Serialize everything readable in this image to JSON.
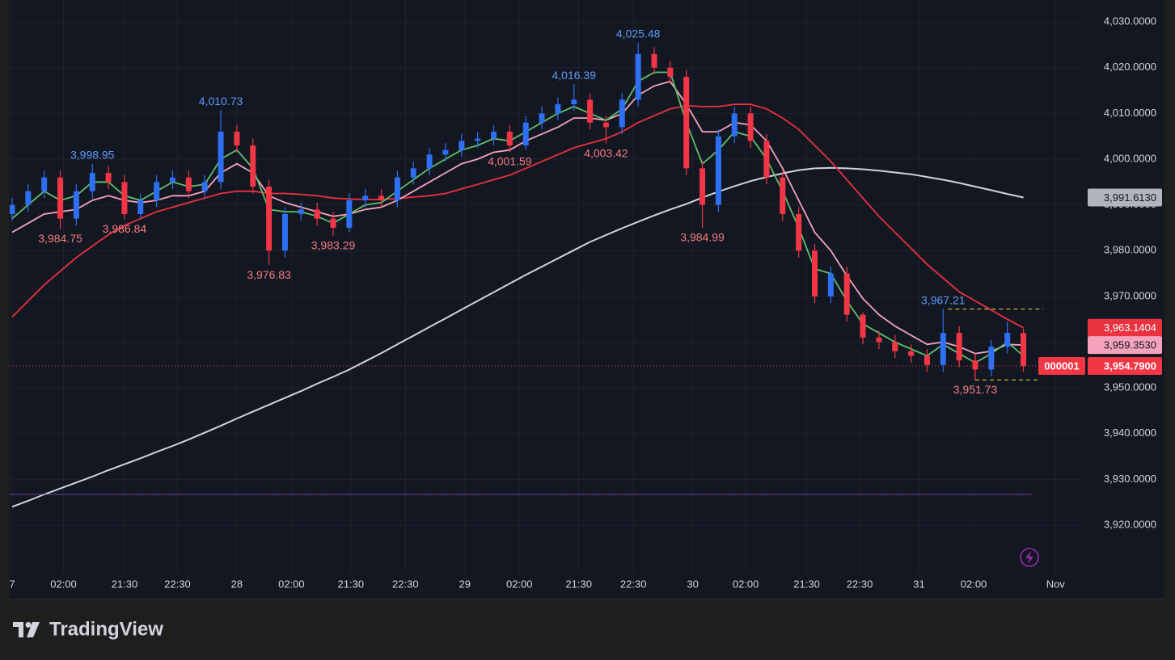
{
  "chart_data": {
    "type": "candlestick",
    "up_color": "#2f6ff2",
    "down_color": "#f23645",
    "grid": true,
    "xlim": [
      -0.15,
      66.75
    ],
    "xticks": [
      {
        "value": 0,
        "label": "7"
      },
      {
        "value": 3.2,
        "label": "02:00"
      },
      {
        "value": 7.0,
        "label": "21:30"
      },
      {
        "value": 10.3,
        "label": "22:30"
      },
      {
        "value": 14.0,
        "label": "28"
      },
      {
        "value": 17.4,
        "label": "02:00"
      },
      {
        "value": 21.1,
        "label": "21:30"
      },
      {
        "value": 24.5,
        "label": "22:30"
      },
      {
        "value": 28.2,
        "label": "29"
      },
      {
        "value": 31.6,
        "label": "02:00"
      },
      {
        "value": 35.3,
        "label": "21:30"
      },
      {
        "value": 38.7,
        "label": "22:30"
      },
      {
        "value": 42.4,
        "label": "30"
      },
      {
        "value": 45.7,
        "label": "02:00"
      },
      {
        "value": 49.5,
        "label": "21:30"
      },
      {
        "value": 52.8,
        "label": "22:30"
      },
      {
        "value": 56.5,
        "label": "31"
      },
      {
        "value": 59.9,
        "label": "02:00"
      },
      {
        "value": 65.0,
        "label": "Nov"
      }
    ],
    "ylim": [
      3904.1,
      4034.8
    ],
    "yticks": [
      {
        "value": 3920,
        "label": "3,920.0000"
      },
      {
        "value": 3930,
        "label": "3,930.0000"
      },
      {
        "value": 3940,
        "label": "3,940.0000"
      },
      {
        "value": 3950,
        "label": "3,950.0000"
      },
      {
        "value": 3960,
        "label": "3,960.0000"
      },
      {
        "value": 3970,
        "label": "3,970.0000"
      },
      {
        "value": 3980,
        "label": "3,980.0000"
      },
      {
        "value": 3990,
        "label": "3,990.0000"
      },
      {
        "value": 4000,
        "label": "4,000.0000"
      },
      {
        "value": 4010,
        "label": "4,010.0000"
      },
      {
        "value": 4020,
        "label": "4,020.0000"
      },
      {
        "value": 4030,
        "label": "4,030.0000"
      }
    ],
    "open": [
      3988,
      3990,
      3993,
      3996,
      3987,
      3993,
      3997,
      3995,
      3988,
      3991,
      3995,
      3996,
      3993,
      3995,
      4006,
      4003,
      3994,
      3980,
      3988,
      3989,
      3987,
      3985,
      3991,
      3992,
      3991,
      3996,
      3998,
      4001,
      4002,
      4004,
      4004.5,
      4006,
      4003,
      4008,
      4010,
      4012,
      4013,
      4008,
      4007,
      4013,
      4023,
      4020,
      4018,
      3998,
      3990,
      4005,
      4010,
      4004,
      3996,
      3988,
      3980,
      3970,
      3975,
      3966,
      3961,
      3960,
      3958,
      3957,
      3955,
      3962,
      3956,
      3954,
      3959,
      3962
    ],
    "high": [
      3991.5,
      3994.5,
      3997.5,
      3997.5,
      3994.5,
      3998.95,
      3998.5,
      3996.5,
      3992.5,
      3996.5,
      3997.5,
      3997.5,
      3996.5,
      4010.73,
      4007.5,
      4004.5,
      3995.5,
      3989.5,
      3990.5,
      3990.5,
      3988.5,
      3992.5,
      3993.5,
      3993.5,
      3997.5,
      3999.5,
      4002.5,
      4003.5,
      4005.5,
      4006,
      4007.5,
      4007.5,
      4009.5,
      4011.5,
      4013.5,
      4016.39,
      4014.5,
      4009.5,
      4014.5,
      4025.48,
      4024.5,
      4021.5,
      4019.5,
      3999.5,
      4006.5,
      4011.5,
      4011.5,
      4005.5,
      3997.5,
      3989.5,
      3981.5,
      3976.5,
      3976.5,
      3966.5,
      3962.5,
      3961.5,
      3959.5,
      3958.5,
      3967.21,
      3963.5,
      3957.5,
      3960.5,
      3964.5,
      3963
    ],
    "low": [
      3986.5,
      3988.5,
      3991.5,
      3984.75,
      3985.5,
      3991.5,
      3993.5,
      3986.84,
      3987,
      3989.5,
      3993.5,
      3991.5,
      3991.5,
      3993.5,
      4001.5,
      3992.5,
      3976.83,
      3978.5,
      3986.5,
      3985.5,
      3983.29,
      3984,
      3989.5,
      3989.5,
      3989.5,
      3994.5,
      3996.5,
      3999.5,
      4000.5,
      4002.5,
      4003,
      4001.59,
      4002,
      4006.5,
      4008.5,
      4010.5,
      4006.5,
      4003.42,
      4005.5,
      4011.5,
      4018.5,
      4016.5,
      3996.5,
      3984.99,
      3988.5,
      4003.5,
      4002.5,
      3994.5,
      3986.5,
      3978.5,
      3968.5,
      3968.5,
      3964.5,
      3959.5,
      3958.5,
      3956.5,
      3955.5,
      3953.5,
      3953.5,
      3954.5,
      3951.73,
      3952.5,
      3957.5,
      3953.5
    ],
    "close": [
      3990,
      3993,
      3996,
      3987,
      3993,
      3997,
      3995,
      3988,
      3991,
      3995,
      3996,
      3993,
      3995,
      4006,
      4003,
      3994,
      3980,
      3988,
      3989,
      3987,
      3985,
      3991,
      3992,
      3991,
      3996,
      3998,
      4001,
      4002,
      4004,
      4004.5,
      4006,
      4003,
      4008,
      4010,
      4012,
      4013,
      4008,
      4007,
      4013,
      4023,
      4020,
      4018,
      3998,
      3990,
      4005,
      4010,
      4004,
      3996,
      3988,
      3980,
      3970,
      3975,
      3966,
      3961,
      3960,
      3958,
      3957,
      3955,
      3962,
      3956,
      3954,
      3959,
      3962,
      3954.79
    ],
    "series": [
      {
        "color": "#d1d4dc",
        "values": [
          3924.0,
          3925.3,
          3926.7,
          3928.0,
          3929.3,
          3930.6,
          3932.0,
          3933.3,
          3934.6,
          3936.0,
          3937.3,
          3938.7,
          3940.2,
          3941.7,
          3943.3,
          3944.8,
          3946.3,
          3947.8,
          3949.3,
          3950.9,
          3952.4,
          3954.0,
          3955.8,
          3957.6,
          3959.5,
          3961.4,
          3963.3,
          3965.2,
          3967.1,
          3969.0,
          3970.9,
          3972.8,
          3974.7,
          3976.5,
          3978.3,
          3980.1,
          3981.9,
          3983.4,
          3984.9,
          3986.3,
          3987.7,
          3989.0,
          3990.2,
          3991.6,
          3992.9,
          3994.1,
          3995.2,
          3996.1,
          3996.9,
          3997.6,
          3998.0,
          3998.1,
          3998.0,
          3997.8,
          3997.5,
          3997.1,
          3996.7,
          3996.1,
          3995.5,
          3994.8,
          3994.0,
          3993.2,
          3992.4,
          3991.613
        ]
      },
      {
        "color": "#e8323f",
        "values": [
          3965.5,
          3969,
          3972.5,
          3975.5,
          3978.5,
          3981,
          3983.5,
          3985.5,
          3987,
          3988.5,
          3989.5,
          3990.5,
          3991.5,
          3992.5,
          3993,
          3993,
          3992.5,
          3992.5,
          3992.3,
          3992,
          3991.5,
          3991.3,
          3991.2,
          3991.2,
          3991.4,
          3991.7,
          3992,
          3992.5,
          3993.5,
          3994.5,
          3995.5,
          3996.5,
          3998,
          3999.5,
          4001,
          4002.5,
          4003.5,
          4004.5,
          4006,
          4008,
          4009.5,
          4011,
          4011.7,
          4011.5,
          4011.5,
          4012,
          4012,
          4011,
          4009,
          4006.5,
          4003,
          3999.5,
          3995.5,
          3991.5,
          3987.5,
          3984,
          3980.5,
          3977,
          3974,
          3971,
          3969,
          3967,
          3965,
          3963.1404
        ]
      },
      {
        "color": "#f5a3bd",
        "values": [
          3984,
          3986,
          3988,
          3988.5,
          3989,
          3991,
          3992,
          3991,
          3990.5,
          3991,
          3992,
          3992,
          3993,
          3997,
          3999,
          3997,
          3992,
          3990.5,
          3989.5,
          3988.5,
          3987.5,
          3988,
          3989,
          3989.5,
          3991,
          3993,
          3995,
          3997,
          3999,
          4000,
          4001.5,
          4002,
          4004,
          4005.5,
          4007,
          4009,
          4009,
          4008.5,
          4010,
          4014,
          4016,
          4017,
          4012,
          4006,
          4006,
          4008,
          4007.5,
          4004,
          3998,
          3991,
          3984,
          3980,
          3974.5,
          3969.5,
          3966,
          3963.5,
          3961.5,
          3959.5,
          3960,
          3959,
          3957.5,
          3958,
          3959.5,
          3959.353
        ]
      },
      {
        "color": "#5fbf6a",
        "values": [
          3987,
          3990,
          3993,
          3991,
          3992,
          3995,
          3995,
          3992,
          3991,
          3993,
          3995,
          3994,
          3994.5,
          4000,
          4002,
          3998,
          3989,
          3988.5,
          3988.5,
          3987.5,
          3986,
          3988,
          3990,
          3990.5,
          3993,
          3995.5,
          3998,
          4000,
          4002,
          4003,
          4004.5,
          4004,
          4006,
          4008,
          4010,
          4011.5,
          4010,
          4008.5,
          4011,
          4017,
          4019,
          4019,
          4008,
          3999,
          4002,
          4006,
          4005,
          4000,
          3993,
          3985,
          3976,
          3975,
          3969,
          3964,
          3962,
          3960,
          3958.5,
          3957,
          3959.5,
          3957.5,
          3955.5,
          3957.5,
          3960,
          3957
        ]
      }
    ],
    "high_annotations": [
      {
        "x": 5,
        "value": 3998.95,
        "label": "3,998.95"
      },
      {
        "x": 13,
        "value": 4010.73,
        "label": "4,010.73"
      },
      {
        "x": 35,
        "value": 4016.39,
        "label": "4,016.39"
      },
      {
        "x": 39,
        "value": 4025.48,
        "label": "4,025.48"
      },
      {
        "x": 58,
        "value": 3967.21,
        "label": "3,967.21"
      }
    ],
    "low_annotations": [
      {
        "x": 3,
        "value": 3984.75,
        "label": "3,984.75"
      },
      {
        "x": 7,
        "value": 3986.84,
        "label": "3,986.84"
      },
      {
        "x": 16,
        "value": 3976.83,
        "label": "3,976.83"
      },
      {
        "x": 20,
        "value": 3983.29,
        "label": "3,983.29"
      },
      {
        "x": 31,
        "value": 4001.59,
        "label": "4,001.59"
      },
      {
        "x": 37,
        "value": 4003.42,
        "label": "4,003.42"
      },
      {
        "x": 43,
        "value": 3984.99,
        "label": "3,984.99"
      },
      {
        "x": 60,
        "value": 3951.73,
        "label": "3,951.73"
      }
    ],
    "price_labels": [
      {
        "value": 3991.613,
        "label": "3,991.6130",
        "color": "#b2b5be",
        "text_color": "#131722"
      },
      {
        "value": 3963.1404,
        "label": "3,963.1404",
        "color": "#e8323f",
        "text_color": "#ffffff"
      },
      {
        "value": 3959.353,
        "label": "3,959.3530",
        "color": "#f5a3bd",
        "text_color": "#131722"
      }
    ],
    "last_price": {
      "value": 3954.79,
      "label": "3,954.7900",
      "countdown": "000001",
      "color": "#f23645"
    },
    "hline": 3926.7
  },
  "footer": {
    "brand": "TradingView"
  }
}
